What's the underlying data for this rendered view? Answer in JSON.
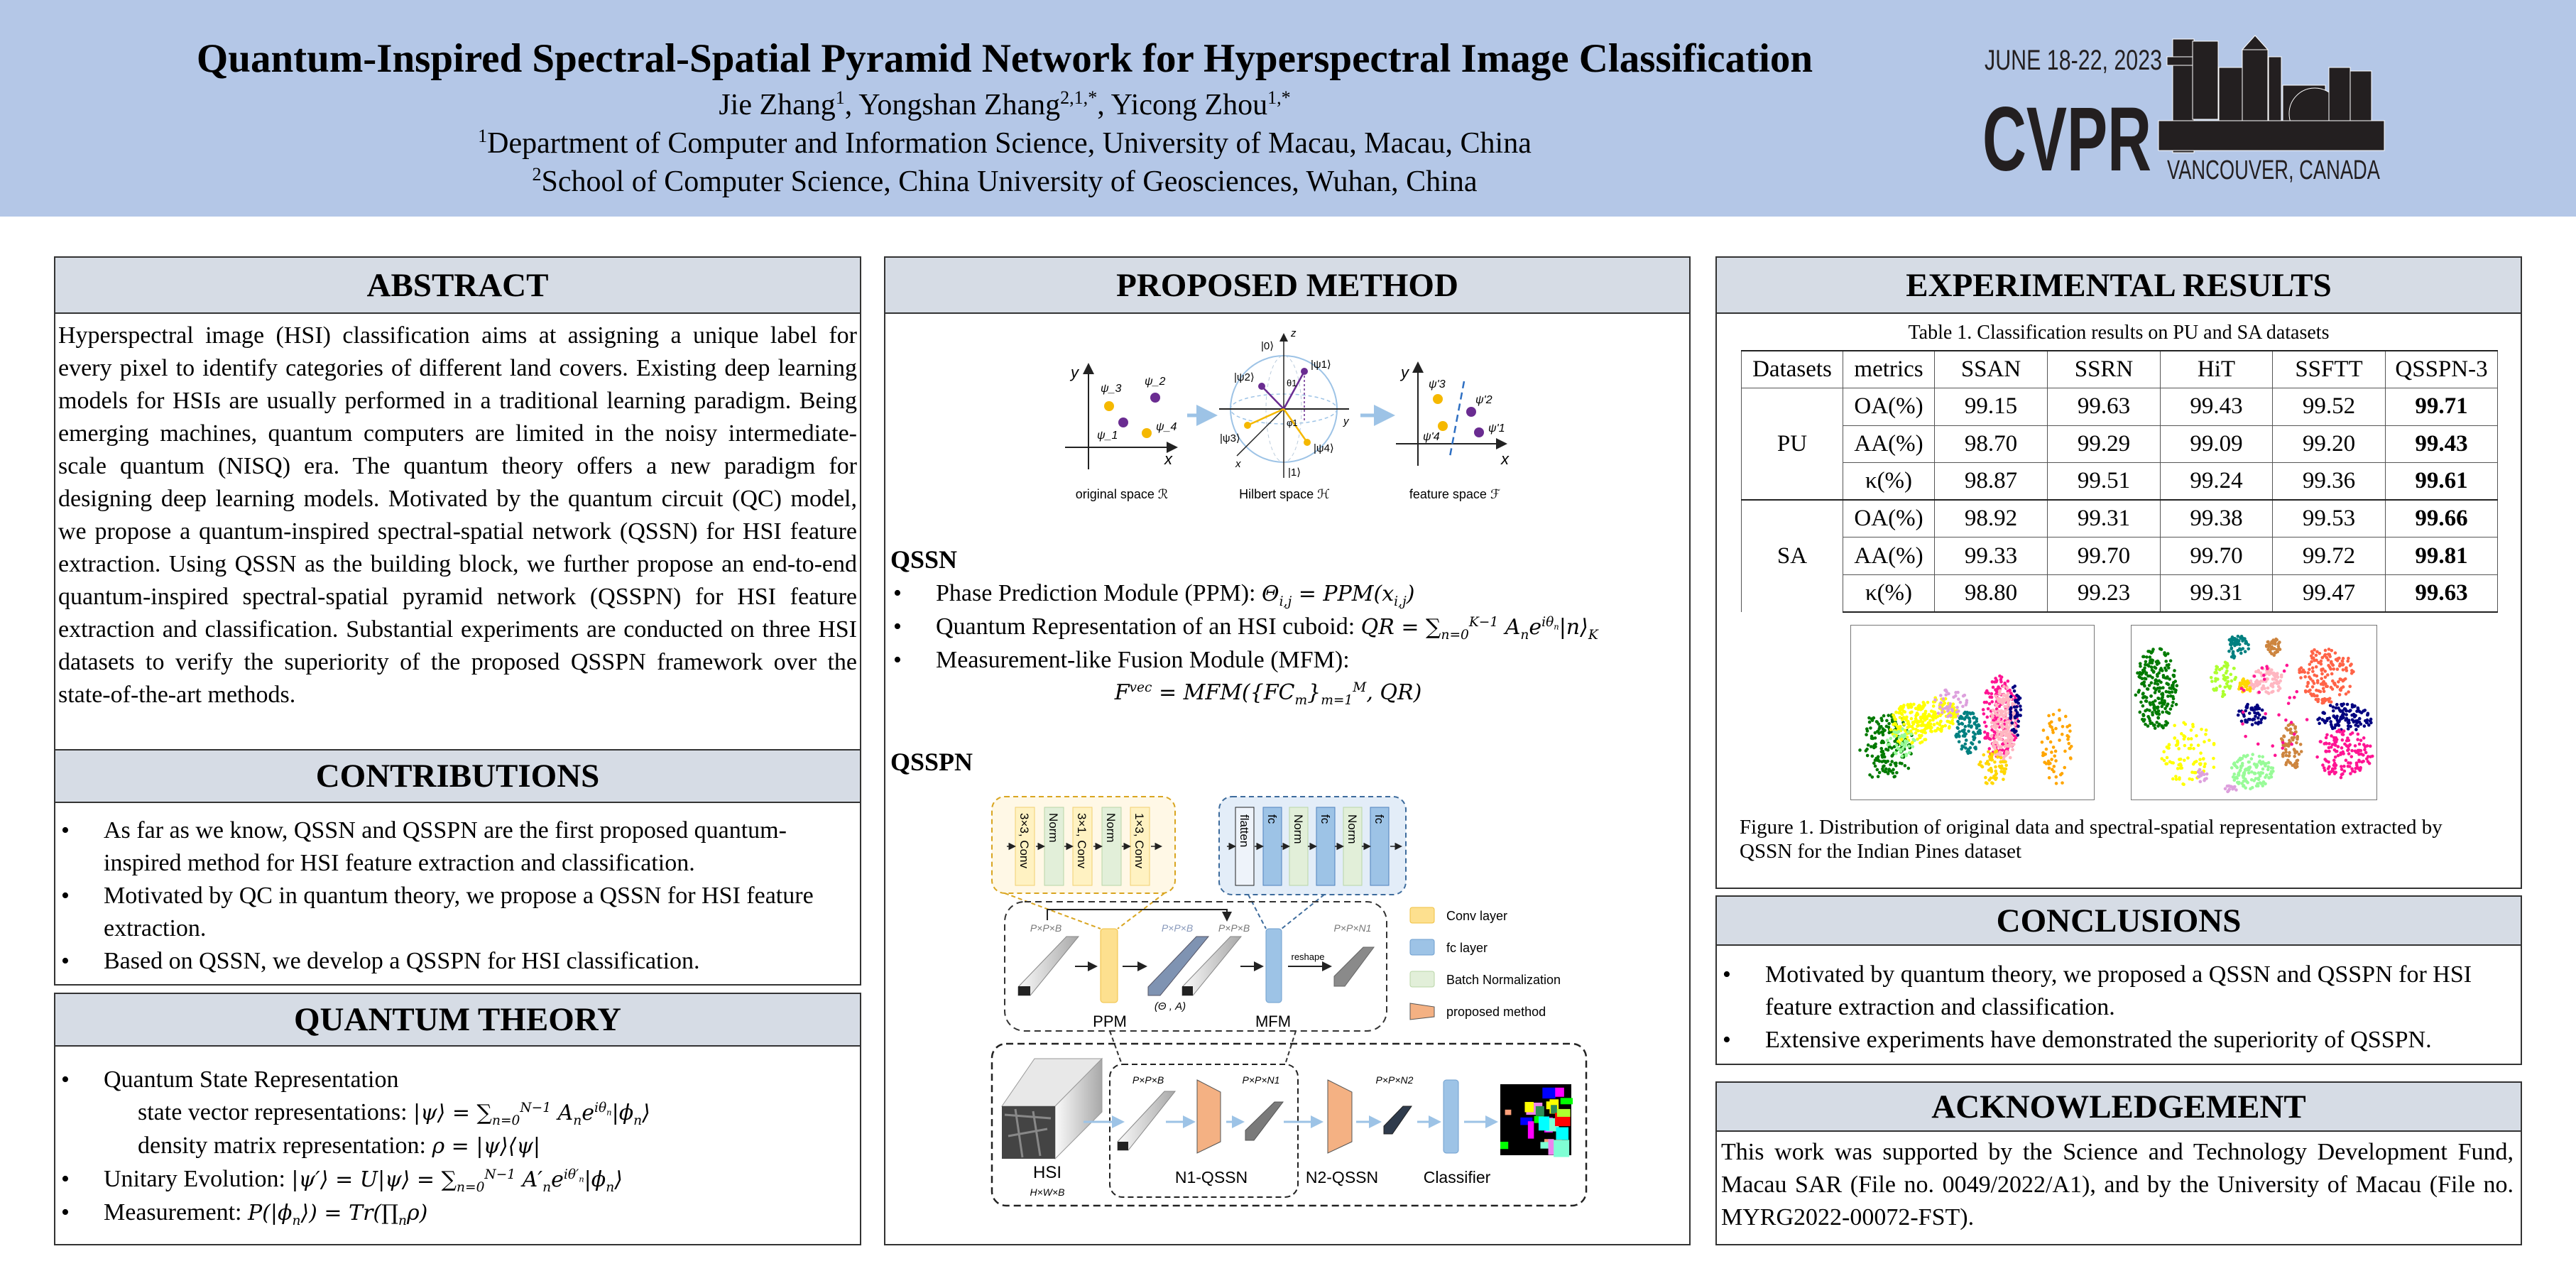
{
  "header": {
    "title": "Quantum-Inspired Spectral-Spatial Pyramid Network for Hyperspectral Image Classification",
    "authors": "Jie Zhang^{1}, Yongshan Zhang^{2,1,*}, Yicong Zhou^{1,*}",
    "affiliation_1": "^{1}Department of Computer and Information Science, University of Macau, Macau, China",
    "affiliation_2": "^{2}School of Computer Science, China University of Geosciences, Wuhan, China",
    "logo": {
      "dates": "JUNE 18-22, 2023",
      "name": "CVPR",
      "location": "VANCOUVER, CANADA",
      "color": "#231f20"
    }
  },
  "colors": {
    "header_bg": "#b4c7e7",
    "section_header_bg": "#d6dce5",
    "yellow": "#f5b800",
    "purple": "#6a2c91",
    "conv": "#fde08f",
    "fc": "#9dc3e6",
    "bn": "#e2efd9",
    "proposed": "#f4b183"
  },
  "abstract": {
    "title": "ABSTRACT",
    "text": "Hyperspectral image (HSI) classification aims at assigning a unique label for every pixel to identify categories of different land covers. Existing deep learning models for HSIs are usually performed in a traditional learning paradigm. Being emerging machines, quantum computers are limited in the noisy intermediate-scale quantum (NISQ) era. The quantum theory offers a new paradigm for designing deep learning models. Motivated by the quantum circuit (QC) model, we propose a quantum-inspired spectral-spatial network (QSSN) for HSI feature extraction. Using QSSN as the building block, we further propose an end-to-end quantum-inspired spectral-spatial pyramid network (QSSPN) for HSI feature extraction and classification. Substantial experiments are conducted on three HSI datasets to verify the superiority of the proposed QSSPN framework over the state-of-the-art methods."
  },
  "contributions": {
    "title": "CONTRIBUTIONS",
    "items": [
      "As far as we know, QSSN and QSSPN are the first proposed quantum-inspired method for HSI feature extraction and classification.",
      "Motivated by  QC in quantum theory, we propose a QSSN for HSI feature extraction.",
      "Based on QSSN, we develop a QSSPN for HSI classification."
    ]
  },
  "quantum_theory": {
    "title": "QUANTUM THEORY",
    "item1": "Quantum State Representation",
    "state_vector_label": "state vector representations: ",
    "state_vector_formula": "|ψ⟩ = ∑_{n=0}^{N−1} A_{n}e^{iθ_{n}}|ϕ_{n}⟩",
    "density_label": "density matrix representation: ",
    "density_formula": "ρ = |ψ⟩⟨ψ|",
    "item2_label": "Unitary Evolution: ",
    "item2_formula": "|ψ′⟩ = U|ψ⟩ = ∑_{n=0}^{N−1} A′_{n}e^{iθ′_{n}}|ϕ_{n}⟩",
    "item3_label": "Measurement: ",
    "item3_formula": "P(|ϕ_{n}⟩) = Tr(∏_{n}ρ)"
  },
  "method": {
    "title": "PROPOSED METHOD",
    "figure_top": {
      "captions": [
        "original space ℛ",
        "Hilbert space ℋ",
        "feature space ℱ"
      ],
      "axis_x": "x",
      "axis_y": "y",
      "axis_z": "z",
      "orig_points": [
        "ψ_3",
        "ψ_2",
        "ψ_1",
        "ψ_4"
      ],
      "hilbert_labels": {
        "ket0": "|0⟩",
        "ket1": "|1⟩",
        "psi1": "|ψ1⟩",
        "psi2": "|ψ2⟩",
        "psi3": "|ψ3⟩",
        "psi4": "|ψ4⟩",
        "theta": "θ1",
        "phi": "φ1"
      },
      "feat_points": [
        "ψ'3",
        "ψ'2",
        "ψ'4",
        "ψ'1"
      ]
    },
    "qssn": {
      "title": "QSSN",
      "ppm_label": "Phase Prediction Module (PPM): ",
      "ppm_formula": "Θ_{i,j} = PPM(x_{i,j})",
      "qr_label": "Quantum Representation of an HSI cuboid: ",
      "qr_formula": "QR = ∑_{n=0}^{K−1} A_{n}e^{iθ_{n}}|n⟩_{K}",
      "mfm_label": "Measurement-like Fusion Module (MFM):",
      "mfm_formula": "F^{vec} = MFM(\\{FC_{m}\\}_{m=1}^{M}, QR)"
    },
    "qsspn": {
      "title": "QSSPN",
      "conv_blocks": [
        "3×3, Conv",
        "Norm",
        "3×1, Conv",
        "Norm",
        "1×3, Conv"
      ],
      "fc_blocks": [
        "flatten",
        "fc",
        "Norm",
        "fc",
        "Norm",
        "fc"
      ],
      "dims": {
        "pxpxb": "P×P×B",
        "pxpxn1": "P×P×N1",
        "pxpxn2": "P×P×N2",
        "hwb": "H×W×B"
      },
      "reshape": "reshape",
      "theta_a": "(Θ  , A)",
      "ppm": "PPM",
      "mfm": "MFM",
      "hsi": "HSI",
      "n1_qssn": "N1-QSSN",
      "n2_qssn": "N2-QSSN",
      "classifier": "Classifier",
      "legend": [
        "Conv layer",
        "fc layer",
        "Batch Normalization",
        "proposed method"
      ]
    }
  },
  "results": {
    "title": "EXPERIMENTAL RESULTS",
    "table_caption": "Table 1. Classification results on PU and SA datasets",
    "columns": [
      "Datasets",
      "metrics",
      "SSAN",
      "SSRN",
      "HiT",
      "SSFTT",
      "QSSPN-3"
    ],
    "groups": [
      {
        "dataset": "PU",
        "rows": [
          {
            "metric": "OA(%)",
            "values": [
              "99.15",
              "99.63",
              "99.43",
              "99.52",
              "99.71"
            ]
          },
          {
            "metric": "AA(%)",
            "values": [
              "98.70",
              "99.29",
              "99.09",
              "99.20",
              "99.43"
            ]
          },
          {
            "metric": "κ(%)",
            "values": [
              "98.87",
              "99.51",
              "99.24",
              "99.36",
              "99.61"
            ]
          }
        ]
      },
      {
        "dataset": "SA",
        "rows": [
          {
            "metric": "OA(%)",
            "values": [
              "98.92",
              "99.31",
              "99.38",
              "99.53",
              "99.66"
            ]
          },
          {
            "metric": "AA(%)",
            "values": [
              "99.33",
              "99.70",
              "99.70",
              "99.72",
              "99.81"
            ]
          },
          {
            "metric": "κ(%)",
            "values": [
              "98.80",
              "99.23",
              "99.31",
              "99.47",
              "99.63"
            ]
          }
        ]
      }
    ],
    "figure_caption": "Figure 1. Distribution of original data and spectral-spatial representation extracted by QSSN for the Indian Pines dataset",
    "scatter_palette": [
      "#007a00",
      "#ffff00",
      "#ffd700",
      "#98fb98",
      "#dda0dd",
      "#008080",
      "#ff1493",
      "#ffb6c1",
      "#000080",
      "#ffa500",
      "#fa8072",
      "#cd853f",
      "#ff6347",
      "#adff2f"
    ]
  },
  "conclusions": {
    "title": "CONCLUSIONS",
    "items": [
      "Motivated by quantum theory, we proposed a QSSN and QSSPN for HSI feature extraction and classification.",
      "Extensive experiments have demonstrated the superiority of QSSPN."
    ]
  },
  "acknowledgement": {
    "title": "ACKNOWLEDGEMENT",
    "text": "This work was supported by the Science and Technology Development Fund, Macau SAR (File no. 0049/2022/A1), and by the University of Macau (File no. MYRG2022-00072-FST)."
  }
}
